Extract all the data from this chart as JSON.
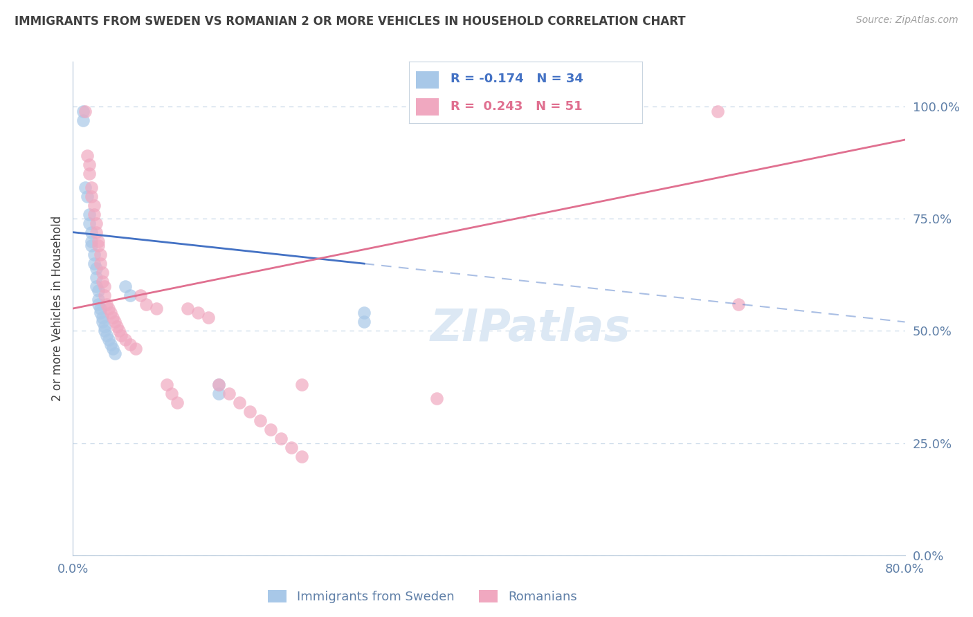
{
  "title": "IMMIGRANTS FROM SWEDEN VS ROMANIAN 2 OR MORE VEHICLES IN HOUSEHOLD CORRELATION CHART",
  "source": "Source: ZipAtlas.com",
  "ylabel": "2 or more Vehicles in Household",
  "xlim": [
    0.0,
    0.8
  ],
  "ylim": [
    0.0,
    1.1
  ],
  "ytick_labels": [
    "0.0%",
    "25.0%",
    "50.0%",
    "75.0%",
    "100.0%"
  ],
  "ytick_values": [
    0.0,
    0.25,
    0.5,
    0.75,
    1.0
  ],
  "xtick_labels": [
    "0.0%",
    "80.0%"
  ],
  "xtick_values": [
    0.0,
    0.8
  ],
  "legend_labels": [
    "Immigrants from Sweden",
    "Romanians"
  ],
  "R_sweden": -0.174,
  "N_sweden": 34,
  "R_romanian": 0.243,
  "N_romanian": 51,
  "sweden_color": "#a8c8e8",
  "romanian_color": "#f0a8c0",
  "sweden_line_color": "#4472c4",
  "romanian_line_color": "#e07090",
  "background_color": "#ffffff",
  "grid_color": "#c8d8e8",
  "title_color": "#404040",
  "axis_color": "#6080a8",
  "sweden_scatter_x": [
    0.01,
    0.01,
    0.012,
    0.014,
    0.016,
    0.016,
    0.018,
    0.018,
    0.018,
    0.02,
    0.02,
    0.022,
    0.022,
    0.022,
    0.024,
    0.024,
    0.024,
    0.026,
    0.026,
    0.028,
    0.028,
    0.03,
    0.03,
    0.032,
    0.034,
    0.036,
    0.038,
    0.04,
    0.05,
    0.055,
    0.14,
    0.14,
    0.28,
    0.28
  ],
  "sweden_scatter_y": [
    0.99,
    0.97,
    0.82,
    0.8,
    0.76,
    0.74,
    0.72,
    0.7,
    0.69,
    0.67,
    0.65,
    0.64,
    0.62,
    0.6,
    0.59,
    0.57,
    0.56,
    0.55,
    0.54,
    0.53,
    0.52,
    0.51,
    0.5,
    0.49,
    0.48,
    0.47,
    0.46,
    0.45,
    0.6,
    0.58,
    0.38,
    0.36,
    0.54,
    0.52
  ],
  "romanian_scatter_x": [
    0.012,
    0.014,
    0.016,
    0.016,
    0.018,
    0.018,
    0.02,
    0.02,
    0.022,
    0.022,
    0.024,
    0.024,
    0.026,
    0.026,
    0.028,
    0.028,
    0.03,
    0.03,
    0.032,
    0.034,
    0.036,
    0.038,
    0.04,
    0.042,
    0.044,
    0.046,
    0.05,
    0.055,
    0.06,
    0.065,
    0.07,
    0.08,
    0.09,
    0.095,
    0.1,
    0.11,
    0.12,
    0.13,
    0.14,
    0.15,
    0.16,
    0.17,
    0.18,
    0.19,
    0.2,
    0.21,
    0.22,
    0.22,
    0.35,
    0.62,
    0.64
  ],
  "romanian_scatter_y": [
    0.99,
    0.89,
    0.87,
    0.85,
    0.82,
    0.8,
    0.78,
    0.76,
    0.74,
    0.72,
    0.7,
    0.69,
    0.67,
    0.65,
    0.63,
    0.61,
    0.6,
    0.58,
    0.56,
    0.55,
    0.54,
    0.53,
    0.52,
    0.51,
    0.5,
    0.49,
    0.48,
    0.47,
    0.46,
    0.58,
    0.56,
    0.55,
    0.38,
    0.36,
    0.34,
    0.55,
    0.54,
    0.53,
    0.38,
    0.36,
    0.34,
    0.32,
    0.3,
    0.28,
    0.26,
    0.24,
    0.22,
    0.38,
    0.35,
    0.99,
    0.56
  ],
  "sweden_line_x_solid_end": 0.28,
  "sweden_line_intercept": 0.72,
  "sweden_line_slope": -0.25,
  "romanian_line_intercept": 0.55,
  "romanian_line_slope": 0.47
}
